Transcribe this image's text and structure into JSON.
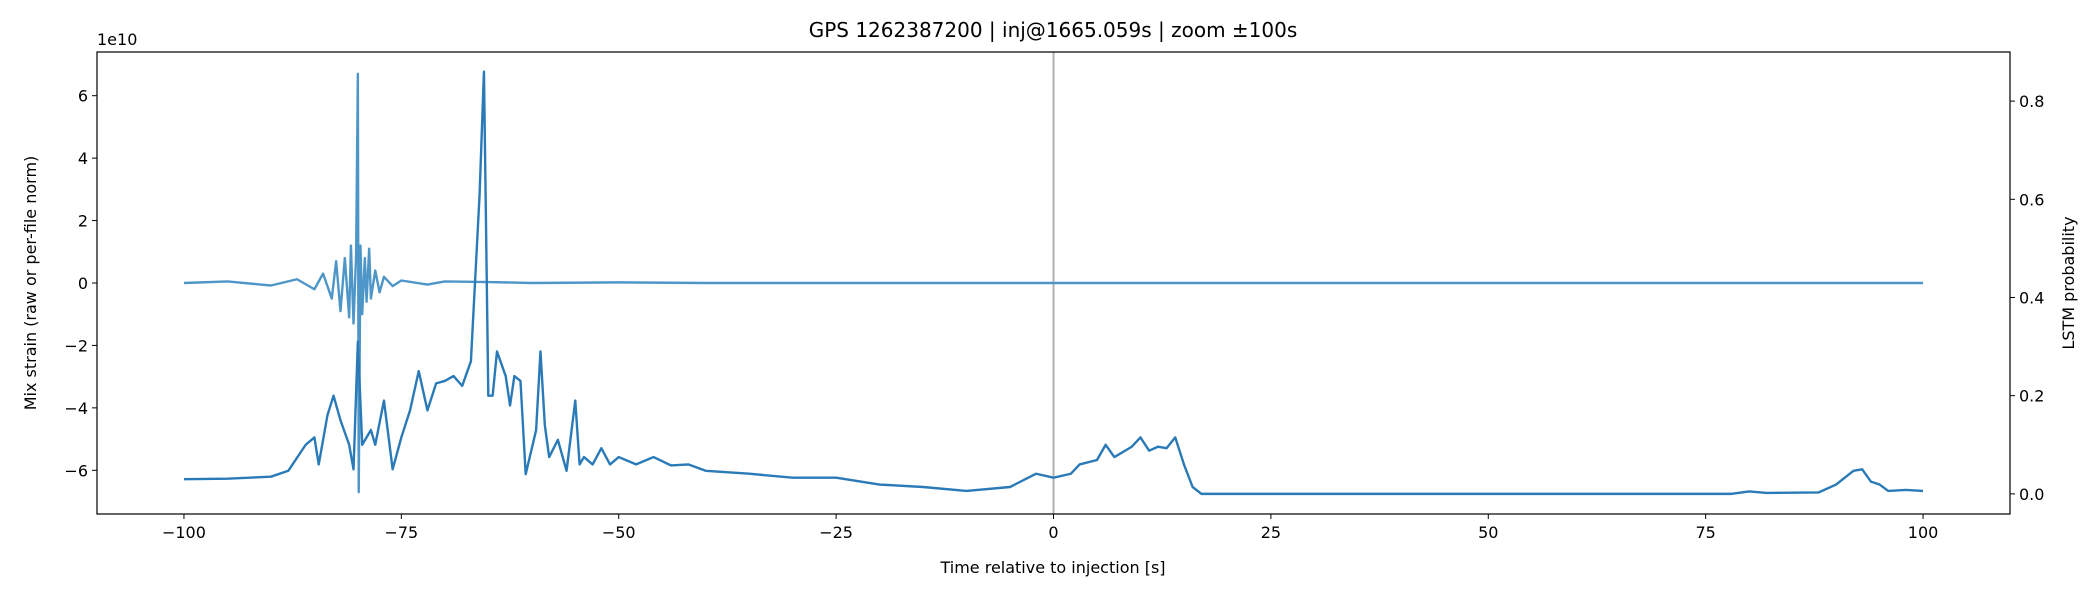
{
  "chart_data": {
    "type": "line",
    "title": "GPS 1262387200 | inj@1665.059s | zoom ±100s",
    "xlabel": "Time relative to injection [s]",
    "ylabel": "Mix strain (raw or per-file norm)",
    "y2label": "LSTM probability",
    "y_offset_label": "1e10",
    "xlim": [
      -110,
      110
    ],
    "xticks": [
      {
        "value": -100,
        "label": "−100"
      },
      {
        "value": -75,
        "label": "−75"
      },
      {
        "value": -50,
        "label": "−50"
      },
      {
        "value": -25,
        "label": "−25"
      },
      0,
      25,
      50,
      75,
      100
    ],
    "ylim": [
      -7.4,
      7.4
    ],
    "yticks": [
      {
        "value": -6,
        "label": "−6"
      },
      {
        "value": -4,
        "label": "−4"
      },
      {
        "value": -2,
        "label": "−2"
      },
      0,
      2,
      4,
      6
    ],
    "y2lim": [
      -0.041,
      0.9
    ],
    "y2ticks": [
      {
        "value": 0,
        "label": "0.0"
      },
      0.2,
      0.4,
      0.6,
      0.8
    ],
    "vline_x": 0,
    "vline_color": "#b0b0b0",
    "series": [
      {
        "color": "#4f96c8",
        "x": [
          -100,
          -95,
          -90,
          -87,
          -85,
          -84,
          -83,
          -82.5,
          -82,
          -81.5,
          -81,
          -80.8,
          -80.5,
          -80.2,
          -80,
          -79.9,
          -79.7,
          -79.5,
          -79.2,
          -79,
          -78.7,
          -78.5,
          -78,
          -77.5,
          -77,
          -76,
          -75,
          -72,
          -70,
          -65,
          -60,
          -50,
          -40,
          -20,
          0,
          50,
          100
        ],
        "values": [
          0,
          0.05,
          -0.08,
          0.12,
          -0.2,
          0.3,
          -0.5,
          0.7,
          -0.9,
          0.8,
          -1.1,
          1.2,
          -1.3,
          0.9,
          6.7,
          -6.7,
          1.2,
          -1.0,
          0.8,
          -0.6,
          1.1,
          -0.5,
          0.4,
          -0.3,
          0.2,
          -0.1,
          0.08,
          -0.05,
          0.05,
          0.03,
          0,
          0.02,
          0,
          0,
          0,
          0,
          0
        ]
      },
      {
        "color": "#2a7ab8",
        "axis": "y2",
        "x": [
          -100,
          -95,
          -90,
          -88,
          -86,
          -85,
          -84.5,
          -83.5,
          -82.8,
          -82,
          -81,
          -80.5,
          -80,
          -79.5,
          -78.5,
          -78,
          -77,
          -76,
          -75,
          -74,
          -73,
          -72,
          -71,
          -70,
          -69,
          -68,
          -67,
          -66,
          -65.5,
          -65,
          -64.5,
          -64,
          -63,
          -62.5,
          -62,
          -61.3,
          -60.7,
          -59.5,
          -59,
          -58.5,
          -58,
          -57,
          -56,
          -55,
          -54.5,
          -54,
          -53,
          -52,
          -51,
          -50,
          -48,
          -46,
          -44,
          -42,
          -40,
          -35,
          -30,
          -25,
          -20,
          -15,
          -10,
          -5,
          -2,
          0,
          2,
          3,
          5,
          6,
          7,
          9,
          10,
          11,
          12,
          13,
          14,
          15,
          16,
          17,
          20,
          40,
          60,
          78,
          80,
          82,
          88,
          90,
          92,
          93,
          94,
          95,
          96,
          98,
          100
        ],
        "values": [
          0.03,
          0.031,
          0.035,
          0.047,
          0.1,
          0.115,
          0.06,
          0.16,
          0.2,
          0.15,
          0.1,
          0.05,
          0.31,
          0.1,
          0.13,
          0.1,
          0.19,
          0.05,
          0.115,
          0.17,
          0.25,
          0.17,
          0.225,
          0.23,
          0.24,
          0.22,
          0.27,
          0.61,
          0.86,
          0.2,
          0.2,
          0.29,
          0.24,
          0.18,
          0.24,
          0.23,
          0.04,
          0.13,
          0.29,
          0.14,
          0.075,
          0.11,
          0.047,
          0.19,
          0.06,
          0.075,
          0.06,
          0.093,
          0.06,
          0.075,
          0.06,
          0.075,
          0.058,
          0.06,
          0.047,
          0.041,
          0.033,
          0.033,
          0.019,
          0.014,
          0.006,
          0.014,
          0.041,
          0.033,
          0.041,
          0.06,
          0.069,
          0.1,
          0.075,
          0.096,
          0.115,
          0.088,
          0.096,
          0.093,
          0.115,
          0.06,
          0.014,
          0.0,
          0.0,
          0.0,
          0.0,
          0.0,
          0.005,
          0.002,
          0.003,
          0.019,
          0.047,
          0.05,
          0.025,
          0.019,
          0.006,
          0.008,
          0.006
        ]
      }
    ]
  }
}
